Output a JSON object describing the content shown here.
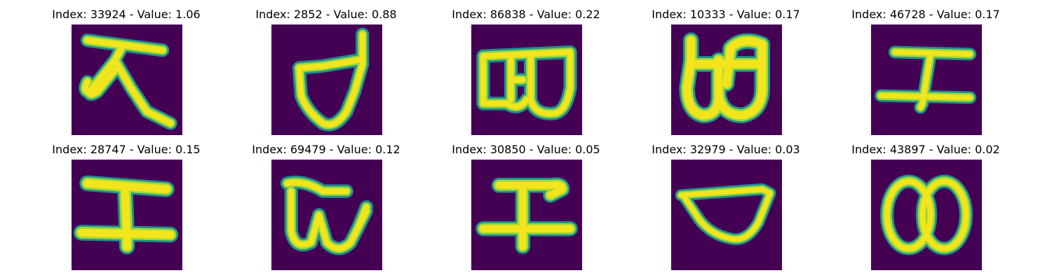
{
  "colors": {
    "background": "#440154",
    "stroke_core": "#f2e51d",
    "stroke_mid": "#9dd93b",
    "stroke_edge": "#35b779",
    "stroke_halo": "#21918c"
  },
  "panels": [
    {
      "title": "Index: 33924 - Value: 1.06",
      "glyph": "glyph-tai"
    },
    {
      "title": "Index: 2852 - Value: 0.88",
      "glyph": "glyph-d-hook"
    },
    {
      "title": "Index: 86838 - Value: 0.22",
      "glyph": "glyph-box-double"
    },
    {
      "title": "Index: 10333 - Value: 0.17",
      "glyph": "glyph-tall-loops"
    },
    {
      "title": "Index: 46728 - Value: 0.17",
      "glyph": "glyph-i-beam"
    },
    {
      "title": "Index: 28747 - Value: 0.15",
      "glyph": "glyph-i-beam"
    },
    {
      "title": "Index: 69479 - Value: 0.12",
      "glyph": "glyph-w-cup"
    },
    {
      "title": "Index: 30850 - Value: 0.05",
      "glyph": "glyph-i-beam"
    },
    {
      "title": "Index: 32979 - Value: 0.03",
      "glyph": "glyph-bowl"
    },
    {
      "title": "Index: 43897 - Value: 0.02",
      "glyph": "glyph-double-loop"
    }
  ]
}
